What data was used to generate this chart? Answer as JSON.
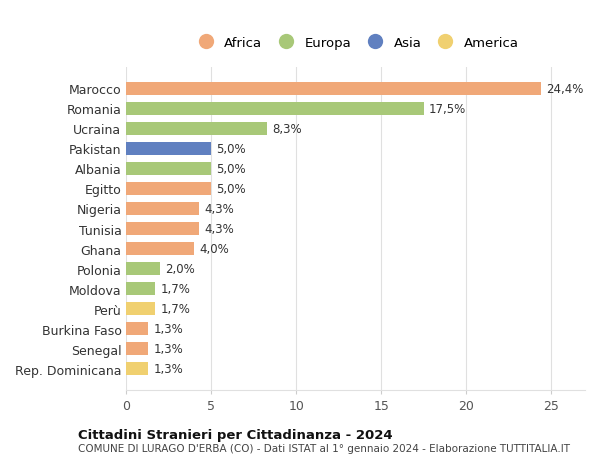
{
  "countries": [
    "Marocco",
    "Romania",
    "Ucraina",
    "Pakistan",
    "Albania",
    "Egitto",
    "Nigeria",
    "Tunisia",
    "Ghana",
    "Polonia",
    "Moldova",
    "Perù",
    "Burkina Faso",
    "Senegal",
    "Rep. Dominicana"
  ],
  "values": [
    24.4,
    17.5,
    8.3,
    5.0,
    5.0,
    5.0,
    4.3,
    4.3,
    4.0,
    2.0,
    1.7,
    1.7,
    1.3,
    1.3,
    1.3
  ],
  "labels": [
    "24,4%",
    "17,5%",
    "8,3%",
    "5,0%",
    "5,0%",
    "5,0%",
    "4,3%",
    "4,3%",
    "4,0%",
    "2,0%",
    "1,7%",
    "1,7%",
    "1,3%",
    "1,3%",
    "1,3%"
  ],
  "continents": [
    "Africa",
    "Europa",
    "Europa",
    "Asia",
    "Europa",
    "Africa",
    "Africa",
    "Africa",
    "Africa",
    "Europa",
    "Europa",
    "America",
    "Africa",
    "Africa",
    "America"
  ],
  "continent_colors": {
    "Africa": "#F0A878",
    "Europa": "#A8C878",
    "Asia": "#6080C0",
    "America": "#F0D070"
  },
  "legend_order": [
    "Africa",
    "Europa",
    "Asia",
    "America"
  ],
  "title": "Cittadini Stranieri per Cittadinanza - 2024",
  "subtitle": "COMUNE DI LURAGO D'ERBA (CO) - Dati ISTAT al 1° gennaio 2024 - Elaborazione TUTTITALIA.IT",
  "xlim": [
    0,
    27
  ],
  "xticks": [
    0,
    5,
    10,
    15,
    20,
    25
  ],
  "background_color": "#ffffff",
  "grid_color": "#e0e0e0",
  "bar_height": 0.65
}
